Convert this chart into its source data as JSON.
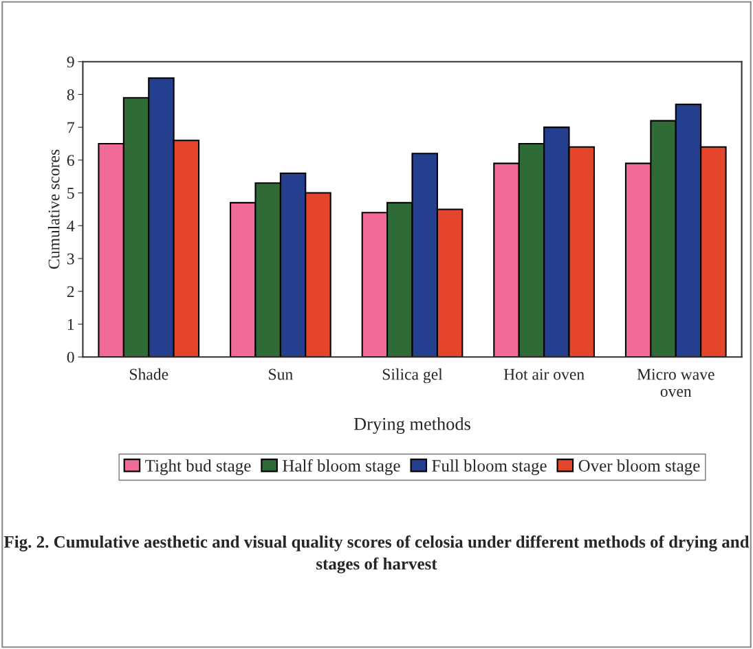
{
  "chart_data": {
    "type": "bar",
    "title": "Fig. 2. Cumulative aesthetic and visual quality scores of celosia under different methods of drying and stages of harvest",
    "xlabel": "Drying methods",
    "ylabel": "Cumulative scores",
    "categories": [
      "Shade",
      "Sun",
      "Silica gel",
      "Hot air oven",
      "Micro wave\noven"
    ],
    "series": [
      {
        "name": "Tight bud stage",
        "color": "#f06a9a",
        "values": [
          6.5,
          4.7,
          4.4,
          5.9,
          5.9
        ]
      },
      {
        "name": "Half bloom stage",
        "color": "#2f6b36",
        "values": [
          7.9,
          5.3,
          4.7,
          6.5,
          7.2
        ]
      },
      {
        "name": "Full bloom stage",
        "color": "#233f8e",
        "values": [
          8.5,
          5.6,
          6.2,
          7.0,
          7.7
        ]
      },
      {
        "name": "Over bloom stage",
        "color": "#e5452b",
        "values": [
          6.6,
          5.0,
          4.5,
          6.4,
          6.4
        ]
      }
    ],
    "ylim": [
      0,
      9
    ],
    "yticks": [
      0,
      1,
      2,
      3,
      4,
      5,
      6,
      7,
      8,
      9
    ],
    "grid": false,
    "legend": "bottom"
  }
}
